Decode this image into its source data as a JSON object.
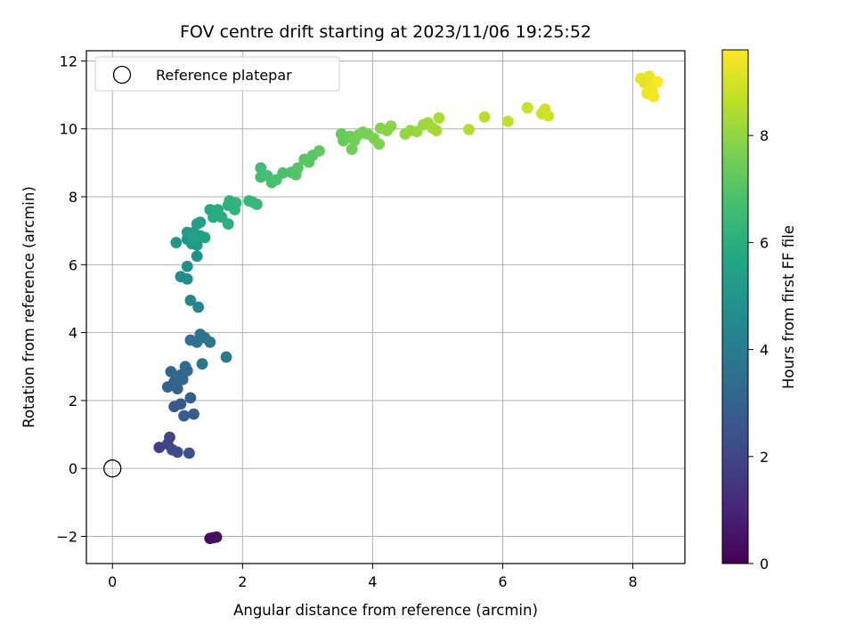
{
  "chart_data": {
    "type": "scatter",
    "title": "FOV centre drift starting at 2023/11/06 19:25:52",
    "xlabel": "Angular distance from reference (arcmin)",
    "ylabel": "Rotation from reference (arcmin)",
    "xlim": [
      -0.4,
      8.8
    ],
    "ylim": [
      -2.8,
      12.3
    ],
    "xticks": [
      0,
      2,
      4,
      6,
      8
    ],
    "yticks": [
      -2,
      0,
      2,
      4,
      6,
      8,
      10,
      12
    ],
    "xtick_labels": [
      "0",
      "2",
      "4",
      "6",
      "8"
    ],
    "ytick_labels": [
      "−2",
      "0",
      "2",
      "4",
      "6",
      "8",
      "10",
      "12"
    ],
    "grid": true,
    "legend": {
      "position": "top-left",
      "entries": [
        {
          "label": "Reference platepar",
          "marker": "open-circle",
          "x": 0,
          "y": 0
        }
      ]
    },
    "colorbar": {
      "label": "Hours from first FF file",
      "colormap": "viridis",
      "range": [
        0,
        9.6
      ],
      "ticks": [
        0,
        2,
        4,
        6,
        8
      ],
      "tick_labels": [
        "0",
        "2",
        "4",
        "6",
        "8"
      ]
    },
    "series": [
      {
        "points": [
          [
            1.5,
            -2.06,
            0.2
          ],
          [
            1.55,
            -2.04,
            0.3
          ],
          [
            1.6,
            -2.02,
            0.4
          ],
          [
            0.72,
            0.62,
            1.8
          ],
          [
            0.85,
            0.72,
            1.9
          ],
          [
            0.88,
            0.92,
            2.0
          ],
          [
            0.92,
            0.55,
            2.1
          ],
          [
            1.0,
            0.48,
            2.2
          ],
          [
            1.18,
            0.45,
            2.3
          ],
          [
            0.95,
            1.82,
            2.7
          ],
          [
            1.05,
            1.9,
            2.75
          ],
          [
            1.1,
            1.55,
            2.8
          ],
          [
            1.25,
            1.6,
            2.85
          ],
          [
            1.2,
            2.08,
            2.9
          ],
          [
            0.85,
            2.4,
            3.0
          ],
          [
            0.95,
            2.55,
            3.05
          ],
          [
            1.0,
            2.35,
            3.1
          ],
          [
            1.08,
            2.62,
            3.15
          ],
          [
            0.9,
            2.85,
            3.2
          ],
          [
            1.05,
            2.75,
            3.25
          ],
          [
            1.12,
            3.0,
            3.3
          ],
          [
            1.15,
            2.88,
            3.35
          ],
          [
            1.2,
            3.78,
            3.6
          ],
          [
            1.3,
            3.72,
            3.65
          ],
          [
            1.35,
            3.95,
            3.7
          ],
          [
            1.42,
            3.85,
            3.75
          ],
          [
            1.5,
            3.72,
            3.8
          ],
          [
            1.38,
            3.08,
            3.85
          ],
          [
            1.75,
            3.28,
            3.9
          ],
          [
            1.32,
            4.75,
            4.3
          ],
          [
            1.2,
            4.95,
            4.4
          ],
          [
            1.05,
            5.65,
            4.6
          ],
          [
            1.15,
            5.58,
            4.65
          ],
          [
            1.15,
            5.95,
            4.7
          ],
          [
            1.3,
            6.25,
            4.8
          ],
          [
            0.98,
            6.65,
            5.0
          ],
          [
            1.15,
            6.75,
            5.05
          ],
          [
            1.22,
            6.62,
            5.1
          ],
          [
            1.3,
            6.58,
            5.15
          ],
          [
            1.35,
            6.85,
            5.2
          ],
          [
            1.15,
            6.95,
            5.25
          ],
          [
            1.25,
            6.95,
            5.3
          ],
          [
            1.3,
            7.2,
            5.35
          ],
          [
            1.35,
            7.25,
            5.4
          ],
          [
            1.42,
            6.8,
            5.45
          ],
          [
            1.25,
            6.78,
            5.5
          ],
          [
            1.5,
            7.62,
            5.8
          ],
          [
            1.55,
            7.4,
            5.85
          ],
          [
            1.6,
            7.45,
            5.9
          ],
          [
            1.62,
            7.62,
            5.95
          ],
          [
            1.68,
            7.4,
            6.0
          ],
          [
            1.78,
            7.2,
            6.05
          ],
          [
            1.78,
            7.75,
            6.1
          ],
          [
            1.8,
            7.88,
            6.15
          ],
          [
            1.88,
            7.62,
            6.2
          ],
          [
            1.9,
            7.82,
            6.25
          ],
          [
            2.1,
            7.88,
            6.3
          ],
          [
            2.15,
            7.85,
            6.35
          ],
          [
            2.22,
            7.78,
            6.4
          ],
          [
            2.28,
            8.85,
            6.6
          ],
          [
            2.28,
            8.58,
            6.65
          ],
          [
            2.38,
            8.62,
            6.7
          ],
          [
            2.45,
            8.42,
            6.75
          ],
          [
            2.52,
            8.5,
            6.8
          ],
          [
            2.62,
            8.7,
            6.85
          ],
          [
            2.75,
            8.72,
            6.9
          ],
          [
            2.82,
            8.65,
            6.95
          ],
          [
            2.85,
            8.85,
            7.0
          ],
          [
            2.95,
            9.1,
            7.05
          ],
          [
            3.02,
            9.02,
            7.1
          ],
          [
            3.08,
            9.22,
            7.15
          ],
          [
            3.18,
            9.35,
            7.2
          ],
          [
            3.52,
            9.85,
            7.3
          ],
          [
            3.55,
            9.65,
            7.35
          ],
          [
            3.65,
            9.78,
            7.4
          ],
          [
            3.68,
            9.4,
            7.45
          ],
          [
            3.72,
            9.65,
            7.5
          ],
          [
            3.78,
            9.82,
            7.55
          ],
          [
            3.85,
            9.9,
            7.6
          ],
          [
            3.92,
            9.85,
            7.65
          ],
          [
            4.02,
            9.72,
            7.7
          ],
          [
            4.1,
            9.55,
            7.75
          ],
          [
            4.12,
            10.02,
            7.8
          ],
          [
            4.22,
            9.95,
            7.85
          ],
          [
            4.28,
            10.08,
            7.9
          ],
          [
            4.5,
            9.85,
            8.0
          ],
          [
            4.58,
            9.95,
            8.05
          ],
          [
            4.68,
            9.92,
            8.1
          ],
          [
            4.78,
            10.12,
            8.15
          ],
          [
            4.85,
            10.18,
            8.2
          ],
          [
            4.92,
            10.02,
            8.25
          ],
          [
            4.98,
            9.95,
            8.3
          ],
          [
            5.02,
            10.32,
            8.35
          ],
          [
            5.48,
            9.98,
            8.5
          ],
          [
            5.72,
            10.35,
            8.6
          ],
          [
            6.08,
            10.22,
            8.7
          ],
          [
            6.38,
            10.62,
            8.8
          ],
          [
            6.6,
            10.45,
            8.85
          ],
          [
            6.65,
            10.58,
            8.9
          ],
          [
            6.7,
            10.38,
            8.95
          ],
          [
            8.12,
            11.48,
            9.2
          ],
          [
            8.18,
            11.35,
            9.25
          ],
          [
            8.22,
            11.05,
            9.3
          ],
          [
            8.25,
            11.55,
            9.35
          ],
          [
            8.28,
            11.22,
            9.4
          ],
          [
            8.3,
            11.12,
            9.45
          ],
          [
            8.32,
            10.95,
            9.5
          ],
          [
            8.38,
            11.38,
            9.55
          ]
        ]
      }
    ]
  }
}
